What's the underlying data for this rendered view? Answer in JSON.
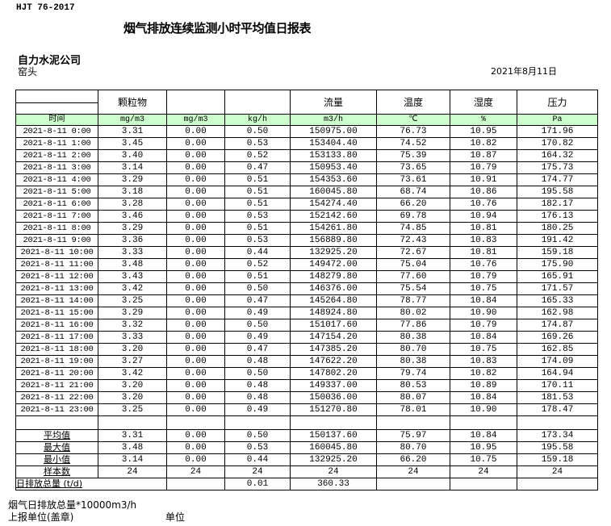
{
  "standard": "HJT  76-2017",
  "title": "烟气排放连续监测小时平均值日报表",
  "company": "自力水泥公司",
  "location": "窑头",
  "date": "2021年8月11日",
  "header": {
    "params": [
      "",
      "颗粒物",
      "",
      "",
      "流量",
      "温度",
      "湿度",
      "压力"
    ],
    "units": [
      "时间",
      "mg/m3",
      "mg/m3",
      "kg/h",
      "m3/h",
      "℃",
      "%",
      "Pa"
    ]
  },
  "rows": [
    [
      "2021-8-11 0:00",
      "3.31",
      "0.00",
      "0.50",
      "150975.00",
      "76.73",
      "10.95",
      "171.96"
    ],
    [
      "2021-8-11 1:00",
      "3.45",
      "0.00",
      "0.53",
      "153404.40",
      "74.52",
      "10.82",
      "170.82"
    ],
    [
      "2021-8-11 2:00",
      "3.40",
      "0.00",
      "0.52",
      "153133.80",
      "75.39",
      "10.87",
      "164.32"
    ],
    [
      "2021-8-11 3:00",
      "3.14",
      "0.00",
      "0.47",
      "150953.40",
      "73.65",
      "10.79",
      "175.73"
    ],
    [
      "2021-8-11 4:00",
      "3.29",
      "0.00",
      "0.51",
      "154353.60",
      "73.61",
      "10.91",
      "174.77"
    ],
    [
      "2021-8-11 5:00",
      "3.18",
      "0.00",
      "0.51",
      "160045.80",
      "68.74",
      "10.86",
      "195.58"
    ],
    [
      "2021-8-11 6:00",
      "3.28",
      "0.00",
      "0.51",
      "154274.40",
      "66.20",
      "10.76",
      "182.17"
    ],
    [
      "2021-8-11 7:00",
      "3.46",
      "0.00",
      "0.53",
      "152142.60",
      "69.78",
      "10.94",
      "176.13"
    ],
    [
      "2021-8-11 8:00",
      "3.29",
      "0.00",
      "0.51",
      "154261.80",
      "74.85",
      "10.81",
      "180.25"
    ],
    [
      "2021-8-11 9:00",
      "3.36",
      "0.00",
      "0.53",
      "156889.80",
      "72.43",
      "10.83",
      "191.42"
    ],
    [
      "2021-8-11 10:00",
      "3.33",
      "0.00",
      "0.44",
      "132925.20",
      "72.67",
      "10.81",
      "159.18"
    ],
    [
      "2021-8-11 11:00",
      "3.48",
      "0.00",
      "0.52",
      "149472.00",
      "75.04",
      "10.76",
      "175.90"
    ],
    [
      "2021-8-11 12:00",
      "3.43",
      "0.00",
      "0.51",
      "148279.80",
      "77.60",
      "10.79",
      "165.91"
    ],
    [
      "2021-8-11 13:00",
      "3.42",
      "0.00",
      "0.50",
      "146376.00",
      "75.54",
      "10.75",
      "171.57"
    ],
    [
      "2021-8-11 14:00",
      "3.25",
      "0.00",
      "0.47",
      "145264.80",
      "78.77",
      "10.84",
      "165.33"
    ],
    [
      "2021-8-11 15:00",
      "3.29",
      "0.00",
      "0.49",
      "148924.80",
      "80.02",
      "10.90",
      "162.98"
    ],
    [
      "2021-8-11 16:00",
      "3.32",
      "0.00",
      "0.50",
      "151017.60",
      "77.86",
      "10.79",
      "174.87"
    ],
    [
      "2021-8-11 17:00",
      "3.33",
      "0.00",
      "0.49",
      "147154.20",
      "80.38",
      "10.84",
      "169.26"
    ],
    [
      "2021-8-11 18:00",
      "3.20",
      "0.00",
      "0.47",
      "147385.20",
      "80.70",
      "10.75",
      "162.85"
    ],
    [
      "2021-8-11 19:00",
      "3.27",
      "0.00",
      "0.48",
      "147622.20",
      "80.38",
      "10.83",
      "174.09"
    ],
    [
      "2021-8-11 20:00",
      "3.42",
      "0.00",
      "0.50",
      "147802.20",
      "79.74",
      "10.82",
      "164.94"
    ],
    [
      "2021-8-11 21:00",
      "3.20",
      "0.00",
      "0.48",
      "149337.00",
      "80.53",
      "10.89",
      "170.11"
    ],
    [
      "2021-8-11 22:00",
      "3.20",
      "0.00",
      "0.48",
      "150036.00",
      "80.07",
      "10.84",
      "181.53"
    ],
    [
      "2021-8-11 23:00",
      "3.25",
      "0.00",
      "0.49",
      "151270.80",
      "78.01",
      "10.90",
      "178.47"
    ]
  ],
  "summary": [
    [
      "平均值",
      "3.31",
      "0.00",
      "0.50",
      "150137.60",
      "75.97",
      "10.84",
      "173.34"
    ],
    [
      "最大值",
      "3.48",
      "0.00",
      "0.53",
      "160045.80",
      "80.70",
      "10.95",
      "195.58"
    ],
    [
      "最小值",
      "3.14",
      "0.00",
      "0.44",
      "132925.20",
      "66.20",
      "10.75",
      "159.18"
    ],
    [
      "样本数",
      "24",
      "24",
      "24",
      "24",
      "24",
      "24",
      "24"
    ]
  ],
  "daily_total": {
    "label": "日排放总量 (t/d)",
    "values": [
      "",
      "0.01",
      "360.33",
      "",
      "",
      ""
    ]
  },
  "footer": {
    "note": "烟气日排放总量*10000m3/h",
    "reporter": "上报单位(盖章)",
    "unit": "单位"
  }
}
